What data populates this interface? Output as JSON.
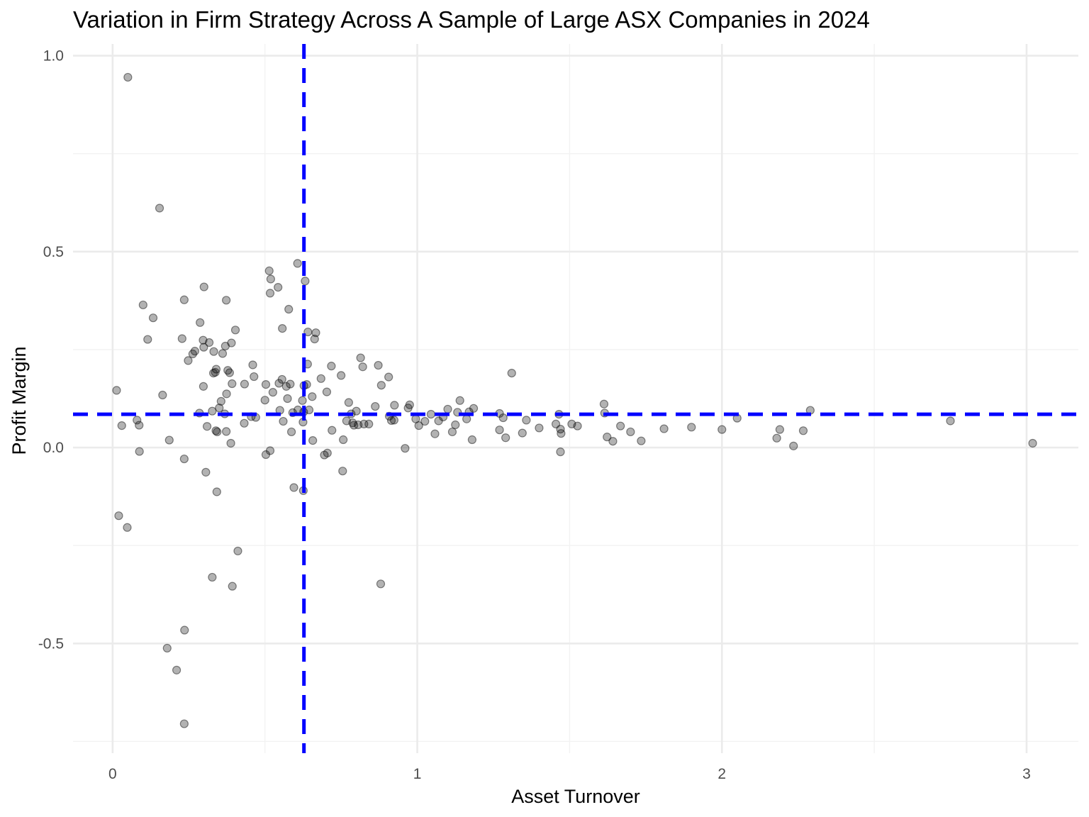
{
  "chart_data": {
    "type": "scatter",
    "title": "Variation in Firm Strategy Across A Sample of Large ASX Companies in 2024",
    "xlabel": "Asset Turnover",
    "ylabel": "Profit Margin",
    "xlim": [
      -0.13,
      3.17
    ],
    "ylim": [
      -0.78,
      1.03
    ],
    "x_ticks": [
      0,
      1,
      2,
      3
    ],
    "x_tick_labels": [
      "0",
      "1",
      "2",
      "3"
    ],
    "x_minor_ticks": [
      0.5,
      1.5,
      2.5
    ],
    "y_ticks": [
      -0.5,
      0.0,
      0.5,
      1.0
    ],
    "y_tick_labels": [
      "-0.5",
      "0.0",
      "0.5",
      "1.0"
    ],
    "y_minor_ticks": [
      -0.75,
      -0.25,
      0.25,
      0.75
    ],
    "grid": true,
    "reference_lines": {
      "vertical_x": 0.628,
      "horizontal_y": 0.085
    },
    "colors": {
      "points": "#000000",
      "reference_lines": "#0000ff",
      "grid": "#ebebeb"
    },
    "points": [
      [
        0.013,
        0.146
      ],
      [
        0.05,
        0.945
      ],
      [
        0.154,
        0.611
      ],
      [
        0.1,
        0.364
      ],
      [
        0.133,
        0.331
      ],
      [
        0.115,
        0.276
      ],
      [
        0.02,
        -0.174
      ],
      [
        0.048,
        -0.204
      ],
      [
        0.03,
        0.056
      ],
      [
        0.08,
        0.07
      ],
      [
        0.087,
        0.057
      ],
      [
        0.088,
        -0.01
      ],
      [
        0.164,
        0.134
      ],
      [
        0.186,
        0.019
      ],
      [
        0.235,
        -0.029
      ],
      [
        0.235,
        0.377
      ],
      [
        0.228,
        0.278
      ],
      [
        0.248,
        0.222
      ],
      [
        0.263,
        0.239
      ],
      [
        0.27,
        0.246
      ],
      [
        0.287,
        0.319
      ],
      [
        0.3,
        0.41
      ],
      [
        0.297,
        0.274
      ],
      [
        0.299,
        0.256
      ],
      [
        0.298,
        0.156
      ],
      [
        0.285,
        0.088
      ],
      [
        0.317,
        0.268
      ],
      [
        0.332,
        0.245
      ],
      [
        0.34,
        0.2
      ],
      [
        0.337,
        0.192
      ],
      [
        0.331,
        0.19
      ],
      [
        0.327,
        0.093
      ],
      [
        0.31,
        0.054
      ],
      [
        0.339,
        0.043
      ],
      [
        0.343,
        0.04
      ],
      [
        0.35,
        0.101
      ],
      [
        0.356,
        0.118
      ],
      [
        0.361,
        0.24
      ],
      [
        0.37,
        0.259
      ],
      [
        0.368,
        0.086
      ],
      [
        0.374,
        0.137
      ],
      [
        0.378,
        0.197
      ],
      [
        0.384,
        0.191
      ],
      [
        0.39,
        0.267
      ],
      [
        0.392,
        0.163
      ],
      [
        0.388,
        0.011
      ],
      [
        0.373,
        0.041
      ],
      [
        0.373,
        0.376
      ],
      [
        0.403,
        0.3
      ],
      [
        0.306,
        -0.063
      ],
      [
        0.342,
        -0.113
      ],
      [
        0.327,
        -0.331
      ],
      [
        0.393,
        -0.354
      ],
      [
        0.411,
        -0.264
      ],
      [
        0.179,
        -0.512
      ],
      [
        0.21,
        -0.568
      ],
      [
        0.236,
        -0.466
      ],
      [
        0.235,
        -0.705
      ],
      [
        0.433,
        0.162
      ],
      [
        0.432,
        0.062
      ],
      [
        0.455,
        0.079
      ],
      [
        0.46,
        0.211
      ],
      [
        0.464,
        0.181
      ],
      [
        0.47,
        0.077
      ],
      [
        0.5,
        0.121
      ],
      [
        0.503,
        0.161
      ],
      [
        0.503,
        -0.018
      ],
      [
        0.514,
        0.451
      ],
      [
        0.519,
        0.43
      ],
      [
        0.517,
        0.394
      ],
      [
        0.526,
        0.141
      ],
      [
        0.517,
        -0.008
      ],
      [
        0.543,
        0.409
      ],
      [
        0.546,
        0.164
      ],
      [
        0.549,
        0.095
      ],
      [
        0.556,
        0.174
      ],
      [
        0.557,
        0.304
      ],
      [
        0.56,
        0.067
      ],
      [
        0.57,
        0.156
      ],
      [
        0.574,
        0.125
      ],
      [
        0.578,
        0.353
      ],
      [
        0.583,
        0.162
      ],
      [
        0.587,
        0.04
      ],
      [
        0.591,
        0.089
      ],
      [
        0.595,
        -0.102
      ],
      [
        0.607,
        0.47
      ],
      [
        0.608,
        0.096
      ],
      [
        0.623,
        0.12
      ],
      [
        0.628,
        0.158
      ],
      [
        0.627,
        0.091
      ],
      [
        0.625,
        0.065
      ],
      [
        0.626,
        -0.11
      ],
      [
        0.632,
        0.425
      ],
      [
        0.637,
        0.161
      ],
      [
        0.64,
        0.213
      ],
      [
        0.641,
        0.295
      ],
      [
        0.645,
        0.096
      ],
      [
        0.655,
        0.13
      ],
      [
        0.657,
        0.018
      ],
      [
        0.663,
        0.277
      ],
      [
        0.667,
        0.293
      ],
      [
        0.684,
        0.176
      ],
      [
        0.695,
        -0.019
      ],
      [
        0.703,
        0.142
      ],
      [
        0.705,
        -0.014
      ],
      [
        0.718,
        0.208
      ],
      [
        0.72,
        0.044
      ],
      [
        0.75,
        0.184
      ],
      [
        0.755,
        -0.06
      ],
      [
        0.757,
        0.02
      ],
      [
        0.768,
        0.068
      ],
      [
        0.775,
        0.115
      ],
      [
        0.783,
        0.086
      ],
      [
        0.788,
        0.063
      ],
      [
        0.792,
        0.057
      ],
      [
        0.8,
        0.093
      ],
      [
        0.806,
        0.058
      ],
      [
        0.814,
        0.229
      ],
      [
        0.821,
        0.206
      ],
      [
        0.825,
        0.06
      ],
      [
        0.841,
        0.06
      ],
      [
        0.862,
        0.105
      ],
      [
        0.872,
        0.21
      ],
      [
        0.882,
        0.159
      ],
      [
        0.88,
        -0.348
      ],
      [
        0.906,
        0.18
      ],
      [
        0.908,
        0.08
      ],
      [
        0.915,
        0.069
      ],
      [
        0.924,
        0.07
      ],
      [
        0.925,
        0.108
      ],
      [
        0.96,
        -0.002
      ],
      [
        0.97,
        0.101
      ],
      [
        0.975,
        0.109
      ],
      [
        0.995,
        0.073
      ],
      [
        1.005,
        0.056
      ],
      [
        1.025,
        0.067
      ],
      [
        1.045,
        0.085
      ],
      [
        1.058,
        0.035
      ],
      [
        1.07,
        0.068
      ],
      [
        1.085,
        0.078
      ],
      [
        1.1,
        0.098
      ],
      [
        1.115,
        0.04
      ],
      [
        1.125,
        0.058
      ],
      [
        1.132,
        0.09
      ],
      [
        1.14,
        0.12
      ],
      [
        1.162,
        0.073
      ],
      [
        1.17,
        0.091
      ],
      [
        1.18,
        0.02
      ],
      [
        1.185,
        0.1
      ],
      [
        1.27,
        0.087
      ],
      [
        1.27,
        0.045
      ],
      [
        1.282,
        0.076
      ],
      [
        1.29,
        0.025
      ],
      [
        1.31,
        0.19
      ],
      [
        1.345,
        0.037
      ],
      [
        1.358,
        0.07
      ],
      [
        1.4,
        0.05
      ],
      [
        1.455,
        0.06
      ],
      [
        1.465,
        0.085
      ],
      [
        1.47,
        0.047
      ],
      [
        1.472,
        0.036
      ],
      [
        1.47,
        -0.011
      ],
      [
        1.507,
        0.06
      ],
      [
        1.526,
        0.055
      ],
      [
        1.613,
        0.111
      ],
      [
        1.615,
        0.088
      ],
      [
        1.623,
        0.027
      ],
      [
        1.642,
        0.016
      ],
      [
        1.667,
        0.055
      ],
      [
        1.7,
        0.04
      ],
      [
        1.735,
        0.017
      ],
      [
        1.81,
        0.048
      ],
      [
        1.9,
        0.052
      ],
      [
        2.0,
        0.046
      ],
      [
        2.05,
        0.075
      ],
      [
        2.18,
        0.024
      ],
      [
        2.19,
        0.046
      ],
      [
        2.235,
        0.004
      ],
      [
        2.267,
        0.043
      ],
      [
        2.29,
        0.095
      ],
      [
        2.75,
        0.068
      ],
      [
        3.02,
        0.011
      ]
    ]
  }
}
